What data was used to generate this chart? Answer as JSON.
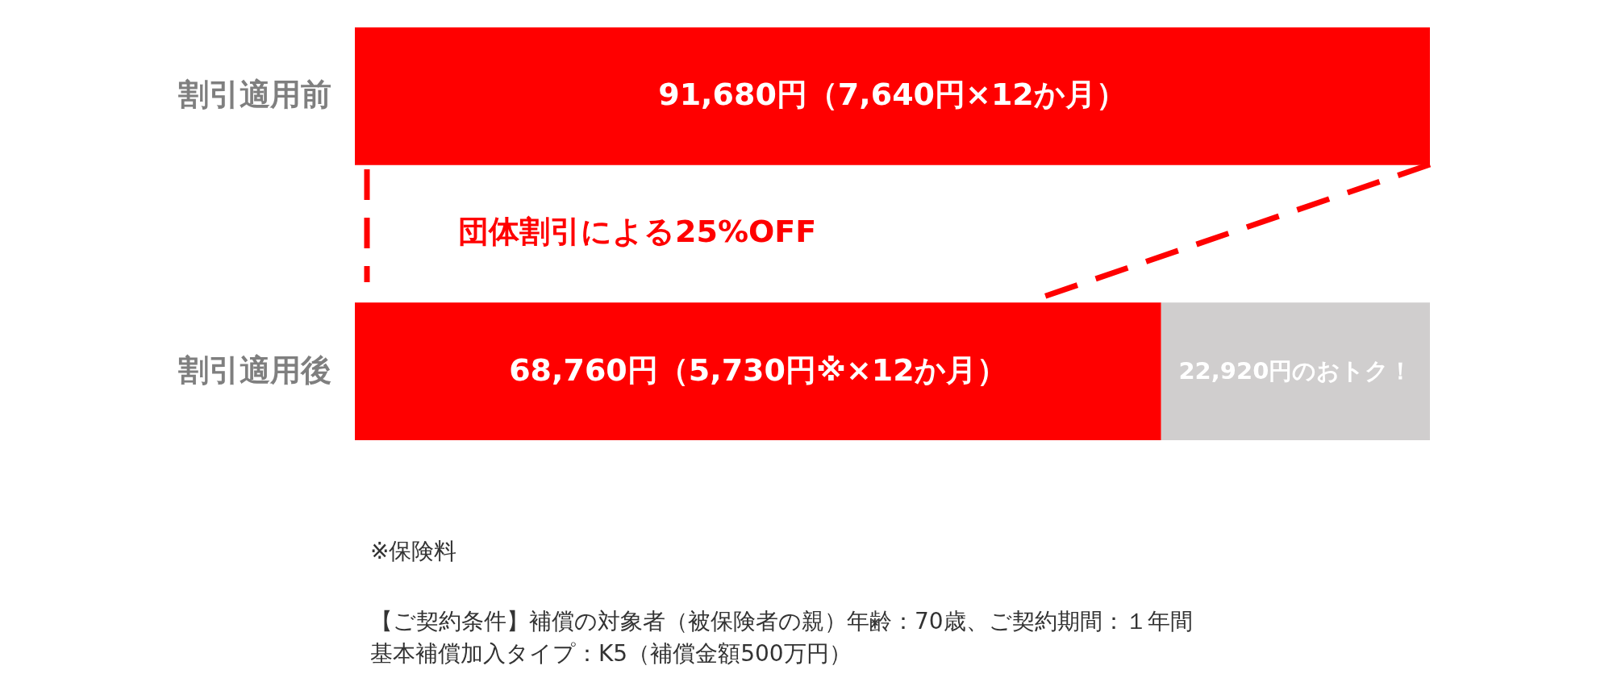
{
  "chart_data": {
    "type": "bar",
    "orientation": "horizontal",
    "stacked": true,
    "tick_labels": "y",
    "xlim": [
      0,
      91680
    ],
    "categories": [
      "割引適用前",
      "割引適用後"
    ],
    "series": [
      {
        "color": "#ff0000",
        "values": [
          91680,
          68760
        ],
        "value_labels": [
          "91,680円（7,640円×12か月）",
          "68,760円（5,730円※×12か月）"
        ]
      },
      {
        "color": "#d0cece",
        "values": [
          null,
          22920
        ],
        "value_labels": [
          null,
          "22,920円のおトク！"
        ]
      }
    ],
    "annotations": [
      "団体割引による25%OFF",
      "※保険料",
      "【ご契約条件】補償の対象者（被保険者の親）年齢：70歳、ご契約期間：１年間",
      "基本補償加入タイプ：K5（補償金額500万円）"
    ]
  }
}
